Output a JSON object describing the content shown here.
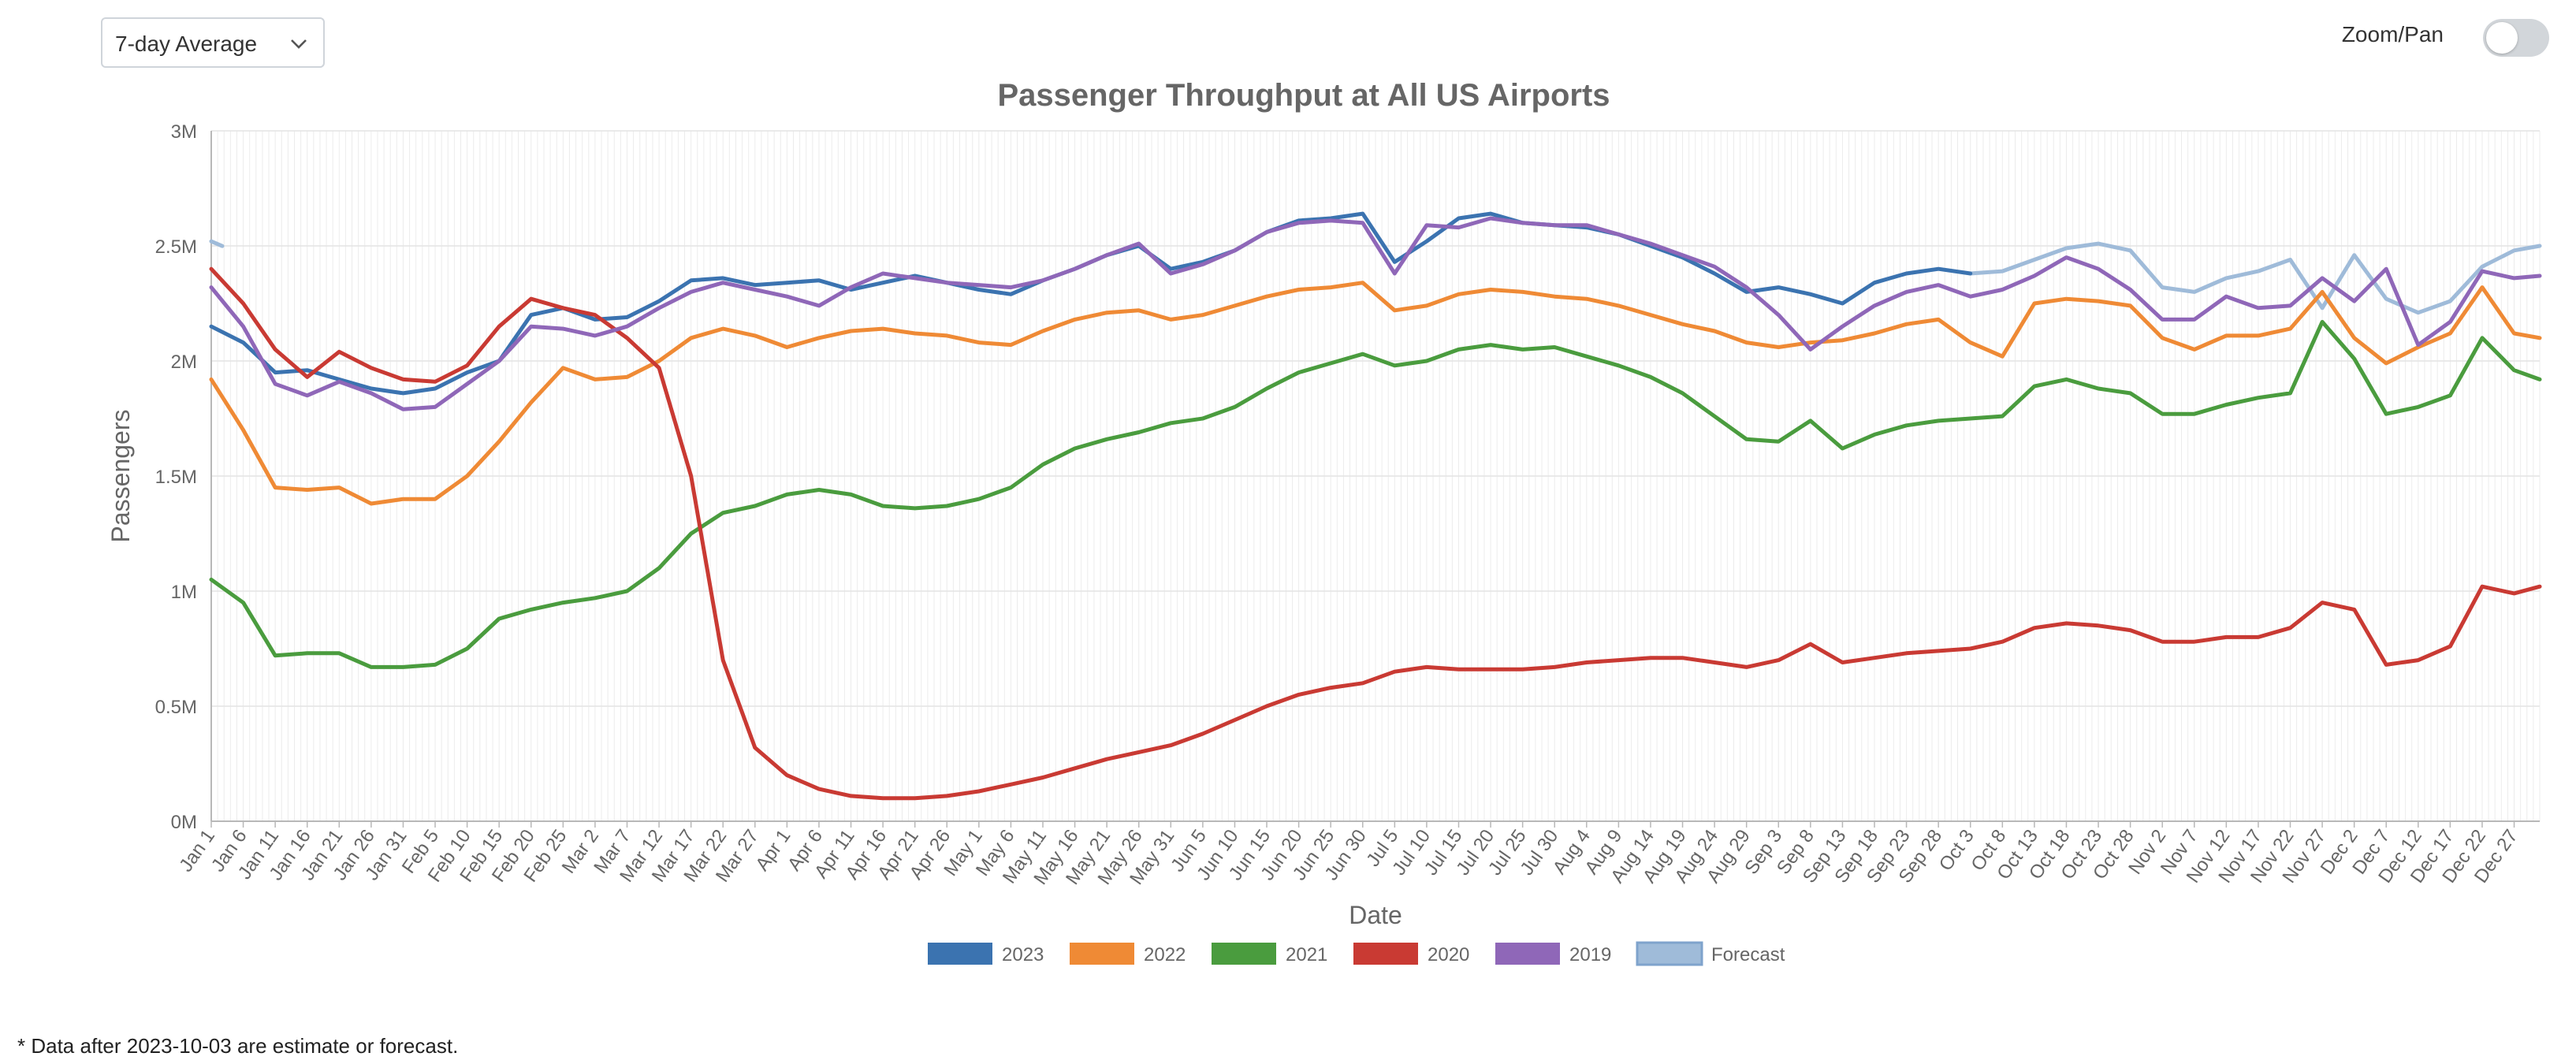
{
  "controls": {
    "dropdown_value": "7-day Average",
    "zoom_label": "Zoom/Pan",
    "zoom_enabled": false
  },
  "footnote": "* Data after 2023-10-03 are estimate or forecast.",
  "chart_data": {
    "type": "line",
    "title": "Passenger Throughput at All US Airports",
    "xlabel": "Date",
    "ylabel": "Passengers",
    "ylim": [
      0,
      3000000
    ],
    "yticks": [
      0,
      500000,
      1000000,
      1500000,
      2000000,
      2500000,
      3000000
    ],
    "ytick_labels": [
      "0M",
      "0.5M",
      "1M",
      "1.5M",
      "2M",
      "2.5M",
      "3M"
    ],
    "x_tick_labels": [
      "Jan 1",
      "Jan 6",
      "Jan 11",
      "Jan 16",
      "Jan 21",
      "Jan 26",
      "Jan 31",
      "Feb 5",
      "Feb 10",
      "Feb 15",
      "Feb 20",
      "Feb 25",
      "Mar 2",
      "Mar 7",
      "Mar 12",
      "Mar 17",
      "Mar 22",
      "Mar 27",
      "Apr 1",
      "Apr 6",
      "Apr 11",
      "Apr 16",
      "Apr 21",
      "Apr 26",
      "May 1",
      "May 6",
      "May 11",
      "May 16",
      "May 21",
      "May 26",
      "May 31",
      "Jun 5",
      "Jun 10",
      "Jun 15",
      "Jun 20",
      "Jun 25",
      "Jun 30",
      "Jul 5",
      "Jul 10",
      "Jul 15",
      "Jul 20",
      "Jul 25",
      "Jul 30",
      "Aug 4",
      "Aug 9",
      "Aug 14",
      "Aug 19",
      "Aug 24",
      "Aug 29",
      "Sep 3",
      "Sep 8",
      "Sep 13",
      "Sep 18",
      "Sep 23",
      "Sep 28",
      "Oct 3",
      "Oct 8",
      "Oct 13",
      "Oct 18",
      "Oct 23",
      "Oct 28",
      "Nov 2",
      "Nov 7",
      "Nov 12",
      "Nov 17",
      "Nov 22",
      "Nov 27",
      "Dec 2",
      "Dec 7",
      "Dec 12",
      "Dec 17",
      "Dec 22",
      "Dec 27"
    ],
    "grid": true,
    "legend_position": "bottom",
    "series": [
      {
        "name": "2023",
        "color": "#3b73b0",
        "x": [
          "Jan 1",
          "Jan 6",
          "Jan 11",
          "Jan 16",
          "Jan 21",
          "Jan 26",
          "Jan 31",
          "Feb 5",
          "Feb 10",
          "Feb 15",
          "Feb 20",
          "Feb 25",
          "Mar 2",
          "Mar 7",
          "Mar 12",
          "Mar 17",
          "Mar 22",
          "Mar 27",
          "Apr 1",
          "Apr 6",
          "Apr 11",
          "Apr 16",
          "Apr 21",
          "Apr 26",
          "May 1",
          "May 6",
          "May 11",
          "May 16",
          "May 21",
          "May 26",
          "May 31",
          "Jun 5",
          "Jun 10",
          "Jun 15",
          "Jun 20",
          "Jun 25",
          "Jun 30",
          "Jul 5",
          "Jul 10",
          "Jul 15",
          "Jul 20",
          "Jul 25",
          "Jul 30",
          "Aug 4",
          "Aug 9",
          "Aug 14",
          "Aug 19",
          "Aug 24",
          "Aug 29",
          "Sep 3",
          "Sep 8",
          "Sep 13",
          "Sep 18",
          "Sep 23",
          "Sep 28",
          "Oct 3"
        ],
        "values": [
          2150000,
          2080000,
          1950000,
          1960000,
          1920000,
          1880000,
          1860000,
          1880000,
          1950000,
          2000000,
          2200000,
          2230000,
          2180000,
          2190000,
          2260000,
          2350000,
          2360000,
          2330000,
          2340000,
          2350000,
          2310000,
          2340000,
          2370000,
          2340000,
          2310000,
          2290000,
          2350000,
          2400000,
          2460000,
          2500000,
          2400000,
          2430000,
          2480000,
          2560000,
          2610000,
          2620000,
          2640000,
          2430000,
          2520000,
          2620000,
          2640000,
          2600000,
          2590000,
          2580000,
          2550000,
          2500000,
          2450000,
          2380000,
          2300000,
          2320000,
          2290000,
          2250000,
          2340000,
          2380000,
          2400000,
          2380000
        ]
      },
      {
        "name": "2022",
        "color": "#ef8a35",
        "x": [
          "Jan 1",
          "Jan 6",
          "Jan 11",
          "Jan 16",
          "Jan 21",
          "Jan 26",
          "Jan 31",
          "Feb 5",
          "Feb 10",
          "Feb 15",
          "Feb 20",
          "Feb 25",
          "Mar 2",
          "Mar 7",
          "Mar 12",
          "Mar 17",
          "Mar 22",
          "Mar 27",
          "Apr 1",
          "Apr 6",
          "Apr 11",
          "Apr 16",
          "Apr 21",
          "Apr 26",
          "May 1",
          "May 6",
          "May 11",
          "May 16",
          "May 21",
          "May 26",
          "May 31",
          "Jun 5",
          "Jun 10",
          "Jun 15",
          "Jun 20",
          "Jun 25",
          "Jun 30",
          "Jul 5",
          "Jul 10",
          "Jul 15",
          "Jul 20",
          "Jul 25",
          "Jul 30",
          "Aug 4",
          "Aug 9",
          "Aug 14",
          "Aug 19",
          "Aug 24",
          "Aug 29",
          "Sep 3",
          "Sep 8",
          "Sep 13",
          "Sep 18",
          "Sep 23",
          "Sep 28",
          "Oct 3",
          "Oct 8",
          "Oct 13",
          "Oct 18",
          "Oct 23",
          "Oct 28",
          "Nov 2",
          "Nov 7",
          "Nov 12",
          "Nov 17",
          "Nov 22",
          "Nov 27",
          "Dec 2",
          "Dec 7",
          "Dec 12",
          "Dec 17",
          "Dec 22",
          "Dec 27",
          "Dec 31"
        ],
        "values": [
          1920000,
          1700000,
          1450000,
          1440000,
          1450000,
          1380000,
          1400000,
          1400000,
          1500000,
          1650000,
          1820000,
          1970000,
          1920000,
          1930000,
          2000000,
          2100000,
          2140000,
          2110000,
          2060000,
          2100000,
          2130000,
          2140000,
          2120000,
          2110000,
          2080000,
          2070000,
          2130000,
          2180000,
          2210000,
          2220000,
          2180000,
          2200000,
          2240000,
          2280000,
          2310000,
          2320000,
          2340000,
          2220000,
          2240000,
          2290000,
          2310000,
          2300000,
          2280000,
          2270000,
          2240000,
          2200000,
          2160000,
          2130000,
          2080000,
          2060000,
          2080000,
          2090000,
          2120000,
          2160000,
          2180000,
          2080000,
          2020000,
          2250000,
          2270000,
          2260000,
          2240000,
          2100000,
          2050000,
          2110000,
          2110000,
          2140000,
          2300000,
          2100000,
          1990000,
          2060000,
          2120000,
          2320000,
          2120000,
          2100000
        ]
      },
      {
        "name": "2021",
        "color": "#4a9c3e",
        "x": [
          "Jan 1",
          "Jan 6",
          "Jan 11",
          "Jan 16",
          "Jan 21",
          "Jan 26",
          "Jan 31",
          "Feb 5",
          "Feb 10",
          "Feb 15",
          "Feb 20",
          "Feb 25",
          "Mar 2",
          "Mar 7",
          "Mar 12",
          "Mar 17",
          "Mar 22",
          "Mar 27",
          "Apr 1",
          "Apr 6",
          "Apr 11",
          "Apr 16",
          "Apr 21",
          "Apr 26",
          "May 1",
          "May 6",
          "May 11",
          "May 16",
          "May 21",
          "May 26",
          "May 31",
          "Jun 5",
          "Jun 10",
          "Jun 15",
          "Jun 20",
          "Jun 25",
          "Jun 30",
          "Jul 5",
          "Jul 10",
          "Jul 15",
          "Jul 20",
          "Jul 25",
          "Jul 30",
          "Aug 4",
          "Aug 9",
          "Aug 14",
          "Aug 19",
          "Aug 24",
          "Aug 29",
          "Sep 3",
          "Sep 8",
          "Sep 13",
          "Sep 18",
          "Sep 23",
          "Sep 28",
          "Oct 3",
          "Oct 8",
          "Oct 13",
          "Oct 18",
          "Oct 23",
          "Oct 28",
          "Nov 2",
          "Nov 7",
          "Nov 12",
          "Nov 17",
          "Nov 22",
          "Nov 27",
          "Dec 2",
          "Dec 7",
          "Dec 12",
          "Dec 17",
          "Dec 22",
          "Dec 27",
          "Dec 31"
        ],
        "values": [
          1050000,
          950000,
          720000,
          730000,
          730000,
          670000,
          670000,
          680000,
          750000,
          880000,
          920000,
          950000,
          970000,
          1000000,
          1100000,
          1250000,
          1340000,
          1370000,
          1420000,
          1440000,
          1420000,
          1370000,
          1360000,
          1370000,
          1400000,
          1450000,
          1550000,
          1620000,
          1660000,
          1690000,
          1730000,
          1750000,
          1800000,
          1880000,
          1950000,
          1990000,
          2030000,
          1980000,
          2000000,
          2050000,
          2070000,
          2050000,
          2060000,
          2020000,
          1980000,
          1930000,
          1860000,
          1760000,
          1660000,
          1650000,
          1740000,
          1620000,
          1680000,
          1720000,
          1740000,
          1750000,
          1760000,
          1890000,
          1920000,
          1880000,
          1860000,
          1770000,
          1770000,
          1810000,
          1840000,
          1860000,
          2170000,
          2010000,
          1770000,
          1800000,
          1850000,
          2100000,
          1960000,
          1920000
        ]
      },
      {
        "name": "2020",
        "color": "#c93a33",
        "x": [
          "Jan 1",
          "Jan 6",
          "Jan 11",
          "Jan 16",
          "Jan 21",
          "Jan 26",
          "Jan 31",
          "Feb 5",
          "Feb 10",
          "Feb 15",
          "Feb 20",
          "Feb 25",
          "Mar 2",
          "Mar 7",
          "Mar 12",
          "Mar 17",
          "Mar 22",
          "Mar 27",
          "Apr 1",
          "Apr 6",
          "Apr 11",
          "Apr 16",
          "Apr 21",
          "Apr 26",
          "May 1",
          "May 6",
          "May 11",
          "May 16",
          "May 21",
          "May 26",
          "May 31",
          "Jun 5",
          "Jun 10",
          "Jun 15",
          "Jun 20",
          "Jun 25",
          "Jun 30",
          "Jul 5",
          "Jul 10",
          "Jul 15",
          "Jul 20",
          "Jul 25",
          "Jul 30",
          "Aug 4",
          "Aug 9",
          "Aug 14",
          "Aug 19",
          "Aug 24",
          "Aug 29",
          "Sep 3",
          "Sep 8",
          "Sep 13",
          "Sep 18",
          "Sep 23",
          "Sep 28",
          "Oct 3",
          "Oct 8",
          "Oct 13",
          "Oct 18",
          "Oct 23",
          "Oct 28",
          "Nov 2",
          "Nov 7",
          "Nov 12",
          "Nov 17",
          "Nov 22",
          "Nov 27",
          "Dec 2",
          "Dec 7",
          "Dec 12",
          "Dec 17",
          "Dec 22",
          "Dec 27",
          "Dec 31"
        ],
        "values": [
          2400000,
          2250000,
          2050000,
          1930000,
          2040000,
          1970000,
          1920000,
          1910000,
          1980000,
          2150000,
          2270000,
          2230000,
          2200000,
          2100000,
          1970000,
          1500000,
          700000,
          320000,
          200000,
          140000,
          110000,
          100000,
          100000,
          110000,
          130000,
          160000,
          190000,
          230000,
          270000,
          300000,
          330000,
          380000,
          440000,
          500000,
          550000,
          580000,
          600000,
          650000,
          670000,
          660000,
          660000,
          660000,
          670000,
          690000,
          700000,
          710000,
          710000,
          690000,
          670000,
          700000,
          770000,
          690000,
          710000,
          730000,
          740000,
          750000,
          780000,
          840000,
          860000,
          850000,
          830000,
          780000,
          780000,
          800000,
          800000,
          840000,
          950000,
          920000,
          680000,
          700000,
          760000,
          1020000,
          990000,
          1020000
        ]
      },
      {
        "name": "2019",
        "color": "#8f67b8",
        "x": [
          "Jan 1",
          "Jan 6",
          "Jan 11",
          "Jan 16",
          "Jan 21",
          "Jan 26",
          "Jan 31",
          "Feb 5",
          "Feb 10",
          "Feb 15",
          "Feb 20",
          "Feb 25",
          "Mar 2",
          "Mar 7",
          "Mar 12",
          "Mar 17",
          "Mar 22",
          "Mar 27",
          "Apr 1",
          "Apr 6",
          "Apr 11",
          "Apr 16",
          "Apr 21",
          "Apr 26",
          "May 1",
          "May 6",
          "May 11",
          "May 16",
          "May 21",
          "May 26",
          "May 31",
          "Jun 5",
          "Jun 10",
          "Jun 15",
          "Jun 20",
          "Jun 25",
          "Jun 30",
          "Jul 5",
          "Jul 10",
          "Jul 15",
          "Jul 20",
          "Jul 25",
          "Jul 30",
          "Aug 4",
          "Aug 9",
          "Aug 14",
          "Aug 19",
          "Aug 24",
          "Aug 29",
          "Sep 3",
          "Sep 8",
          "Sep 13",
          "Sep 18",
          "Sep 23",
          "Sep 28",
          "Oct 3",
          "Oct 8",
          "Oct 13",
          "Oct 18",
          "Oct 23",
          "Oct 28",
          "Nov 2",
          "Nov 7",
          "Nov 12",
          "Nov 17",
          "Nov 22",
          "Nov 27",
          "Dec 2",
          "Dec 7",
          "Dec 12",
          "Dec 17",
          "Dec 22",
          "Dec 27",
          "Dec 31"
        ],
        "values": [
          2320000,
          2150000,
          1900000,
          1850000,
          1910000,
          1860000,
          1790000,
          1800000,
          1900000,
          2000000,
          2150000,
          2140000,
          2110000,
          2150000,
          2230000,
          2300000,
          2340000,
          2310000,
          2280000,
          2240000,
          2320000,
          2380000,
          2360000,
          2340000,
          2330000,
          2320000,
          2350000,
          2400000,
          2460000,
          2510000,
          2380000,
          2420000,
          2480000,
          2560000,
          2600000,
          2610000,
          2600000,
          2380000,
          2590000,
          2580000,
          2620000,
          2600000,
          2590000,
          2590000,
          2550000,
          2510000,
          2460000,
          2410000,
          2320000,
          2200000,
          2050000,
          2150000,
          2240000,
          2300000,
          2330000,
          2280000,
          2310000,
          2370000,
          2450000,
          2400000,
          2310000,
          2180000,
          2180000,
          2280000,
          2230000,
          2240000,
          2360000,
          2260000,
          2400000,
          2070000,
          2170000,
          2390000,
          2360000,
          2370000
        ]
      },
      {
        "name": "Forecast",
        "color": "#9fbbd9",
        "x": [
          "Jan 1",
          "Oct 3",
          "Oct 8",
          "Oct 13",
          "Oct 18",
          "Oct 23",
          "Oct 28",
          "Nov 2",
          "Nov 7",
          "Nov 12",
          "Nov 17",
          "Nov 22",
          "Nov 27",
          "Dec 2",
          "Dec 7",
          "Dec 12",
          "Dec 17",
          "Dec 22",
          "Dec 27",
          "Dec 31"
        ],
        "values": [
          2520000,
          2380000,
          2390000,
          2440000,
          2490000,
          2510000,
          2480000,
          2320000,
          2300000,
          2360000,
          2390000,
          2440000,
          2230000,
          2460000,
          2270000,
          2210000,
          2260000,
          2410000,
          2480000,
          2500000
        ]
      }
    ]
  }
}
